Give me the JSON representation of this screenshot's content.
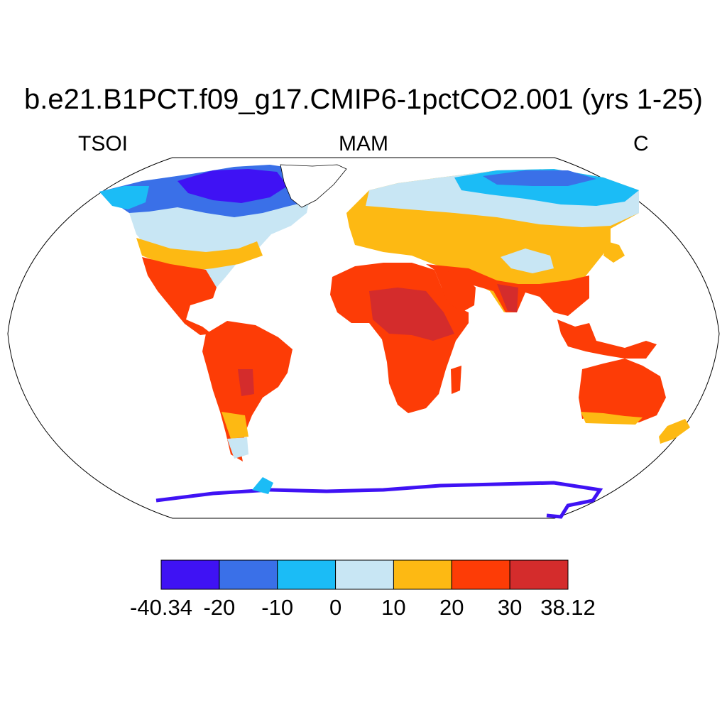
{
  "title": "b.e21.B1PCT.f09_g17.CMIP6-1pctCO2.001 (yrs 1-25)",
  "left_label": "TSOI",
  "center_label": "MAM",
  "right_label": "C",
  "colorbar": {
    "bounds": [
      "-40.34",
      "-20",
      "-10",
      "0",
      "10",
      "20",
      "30",
      "38.12"
    ],
    "colors": [
      "#3f12f4",
      "#3a70e8",
      "#1bbcf6",
      "#c8e6f4",
      "#fdb913",
      "#fd3c06",
      "#d42c2c"
    ]
  }
}
